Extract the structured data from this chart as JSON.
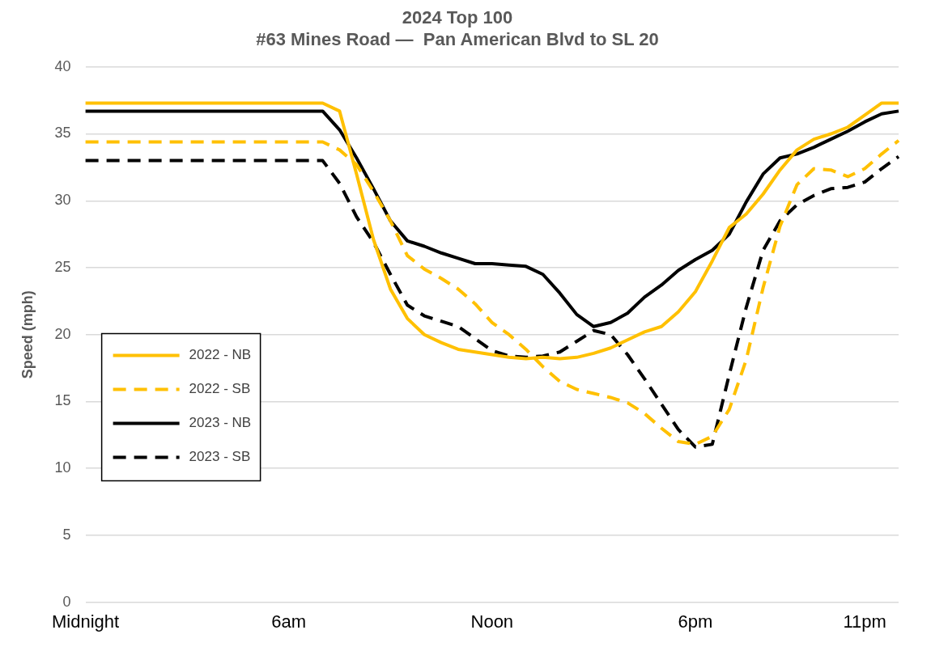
{
  "chart_data": {
    "type": "line",
    "title": [
      "2024 Top 100",
      "#63 Mines Road —  Pan American Blvd to SL 20"
    ],
    "ylabel": "Speed (mph)",
    "categories": [
      "Midnight",
      null,
      null,
      null,
      null,
      null,
      null,
      null,
      null,
      null,
      null,
      null,
      "6am",
      null,
      null,
      null,
      null,
      null,
      null,
      null,
      null,
      null,
      null,
      null,
      "Noon",
      null,
      null,
      null,
      null,
      null,
      null,
      null,
      null,
      null,
      null,
      null,
      "6pm",
      null,
      null,
      null,
      null,
      null,
      null,
      null,
      null,
      null,
      "11pm",
      null,
      null
    ],
    "ylim": [
      0,
      40
    ],
    "yticks": [
      0,
      5,
      10,
      15,
      20,
      25,
      30,
      35,
      40
    ],
    "grid": "y",
    "legend": "bottom left",
    "marker": "none",
    "series": [
      {
        "name": "2022 - NB",
        "color": "#ffc000",
        "line_style": "solid",
        "values": [
          37.3,
          37.3,
          37.3,
          37.3,
          37.3,
          37.3,
          37.3,
          37.3,
          37.3,
          37.3,
          37.3,
          37.3,
          37.3,
          37.3,
          37.3,
          36.7,
          32,
          27.1,
          23.4,
          21.2,
          20.0,
          19.4,
          18.9,
          18.7,
          18.5,
          18.3,
          18.2,
          18.3,
          18.2,
          18.3,
          18.6,
          19.0,
          19.6,
          20.2,
          20.6,
          21.7,
          23.2,
          25.5,
          28,
          29,
          30.5,
          32.3,
          33.8,
          34.6,
          35.0,
          35.5,
          36.4,
          37.3,
          37.3
        ]
      },
      {
        "name": "2022 - SB",
        "color": "#ffc000",
        "line_style": "dashed",
        "values": [
          34.4,
          34.4,
          34.4,
          34.4,
          34.4,
          34.4,
          34.4,
          34.4,
          34.4,
          34.4,
          34.4,
          34.4,
          34.4,
          34.4,
          34.4,
          33.8,
          32.7,
          30.7,
          28.5,
          25.9,
          24.9,
          24.2,
          23.4,
          22.3,
          20.9,
          20.0,
          18.9,
          17.6,
          16.5,
          15.9,
          15.6,
          15.3,
          14.9,
          14.1,
          13.0,
          12.0,
          11.8,
          12.4,
          14.4,
          18.1,
          23.5,
          28.1,
          31.2,
          32.4,
          32.3,
          31.8,
          32.4,
          33.5,
          34.5
        ]
      },
      {
        "name": "2023 - NB",
        "color": "#000000",
        "line_style": "solid",
        "values": [
          36.7,
          36.7,
          36.7,
          36.7,
          36.7,
          36.7,
          36.7,
          36.7,
          36.7,
          36.7,
          36.7,
          36.7,
          36.7,
          36.7,
          36.7,
          35.3,
          33.2,
          30.9,
          28.5,
          27.0,
          26.6,
          26.1,
          25.7,
          25.3,
          25.3,
          25.2,
          25.1,
          24.5,
          23.1,
          21.5,
          20.6,
          20.9,
          21.6,
          22.8,
          23.7,
          24.8,
          25.6,
          26.3,
          27.5,
          29.9,
          32.0,
          33.2,
          33.5,
          34.0,
          34.6,
          35.2,
          35.9,
          36.5,
          36.7
        ]
      },
      {
        "name": "2023 - SB",
        "color": "#000000",
        "line_style": "dashed",
        "values": [
          33,
          33,
          33,
          33,
          33,
          33,
          33,
          33,
          33,
          33,
          33,
          33,
          33,
          33,
          33,
          31.3,
          28.8,
          26.9,
          24.5,
          22.2,
          21.4,
          21.0,
          20.6,
          19.7,
          18.8,
          18.4,
          18.3,
          18.4,
          18.7,
          19.5,
          20.3,
          20.0,
          18.5,
          16.7,
          14.8,
          12.9,
          11.6,
          11.8,
          17.0,
          22.0,
          26.3,
          28.5,
          29.7,
          30.4,
          30.9,
          31.0,
          31.4,
          32.4,
          33.3
        ]
      }
    ]
  }
}
